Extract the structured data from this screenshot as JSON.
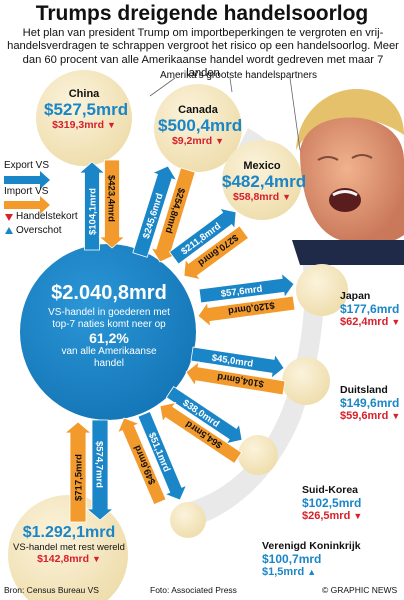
{
  "header": {
    "title": "Trumps dreigende handelsoorlog",
    "intro": "Het plan van president Trump om importbeperkingen te vergroten en vrij-handelsverdragen te schrappen vergroot het risico op een handelsoorlog. Meer dan 60 procent van alle Amerikaanse handel wordt gedreven met maar 7 landen"
  },
  "partners_label": "Amerika's grootste handelspartners",
  "legend": {
    "export": "Export VS",
    "import": "Import VS",
    "deficit": "Handelstekort",
    "surplus": "Overschot"
  },
  "center": {
    "total": "$2.040,8mrd",
    "line1": "VS-handel in goederen met",
    "line2": "top-7 naties komt neer op",
    "pct": "61,2%",
    "line3": "van alle Amerikaanse",
    "line4": "handel"
  },
  "rest": {
    "total": "$1.292,1mrd",
    "label": "VS-handel met rest wereld",
    "balance": "$142,8mrd"
  },
  "countries": {
    "china": {
      "name": "China",
      "total": "$527,5mrd",
      "balance": "$319,3mrd",
      "export": "$104,1mrd",
      "import": "$423,4mrd"
    },
    "canada": {
      "name": "Canada",
      "total": "$500,4mrd",
      "balance": "$9,2mrd",
      "export": "$245,6mrd",
      "import": "$254,8mrd"
    },
    "mexico": {
      "name": "Mexico",
      "total": "$482,4mrd",
      "balance": "$58,8mrd",
      "export": "$211,8mrd",
      "import": "$270,6mrd"
    },
    "japan": {
      "name": "Japan",
      "total": "$177,6mrd",
      "balance": "$62,4mrd",
      "export": "$57,6mrd",
      "import": "$120,0mrd"
    },
    "germany": {
      "name": "Duitsland",
      "total": "$149,6mrd",
      "balance": "$59,6mrd",
      "export": "$45,0mrd",
      "import": "$104,6mrd"
    },
    "korea": {
      "name": "Suid-Korea",
      "total": "$102,5mrd",
      "balance": "$26,5mrd",
      "export": "$38,0mrd",
      "import": "$64,5mrd"
    },
    "uk": {
      "name": "Verenigd Koninkrijk",
      "total": "$100,7mrd",
      "balance": "$1,5mrd",
      "export": "$51,1mrd",
      "import": "$49,6mrd"
    }
  },
  "rest_flows": {
    "export": "$574,7mrd",
    "import": "$717,5mrd"
  },
  "footer": {
    "source": "Bron: Census Bureau VS",
    "photo": "Foto: Associated Press",
    "credit": "© GRAPHIC NEWS"
  },
  "colors": {
    "blue": "#1a86c7",
    "orange": "#f39a2c",
    "cream": "#f6e9c6",
    "red": "#d6202a"
  }
}
